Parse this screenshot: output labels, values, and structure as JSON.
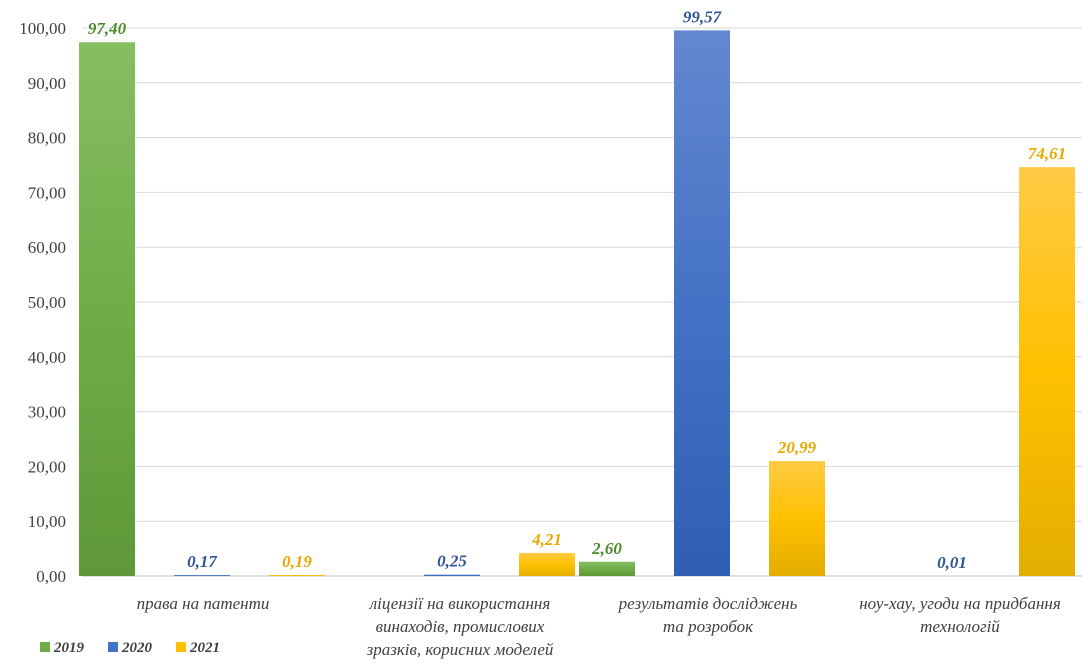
{
  "chart_data": {
    "type": "bar",
    "categories": [
      [
        "права на патенти"
      ],
      [
        "ліцензії на використання",
        "винаходів, промислових",
        "зразків, корисних моделей"
      ],
      [
        "результатів досліджень",
        "та розробок"
      ],
      [
        "ноу-хау, угоди на придбання",
        "технологій"
      ]
    ],
    "series": [
      {
        "name": "2019",
        "color": "#70AD47",
        "values": [
          97.4,
          null,
          2.6,
          null
        ],
        "labels": [
          "97,40",
          "",
          "2,60",
          ""
        ]
      },
      {
        "name": "2020",
        "color": "#4472C4",
        "values": [
          0.17,
          0.25,
          99.57,
          0.01
        ],
        "labels": [
          "0,17",
          "0,25",
          "99,57",
          "0,01"
        ]
      },
      {
        "name": "2021",
        "color": "#FFC000",
        "values": [
          0.19,
          4.21,
          20.99,
          74.61
        ],
        "labels": [
          "0,19",
          "4,21",
          "20,99",
          "74,61"
        ]
      }
    ],
    "label_colors": [
      "#4E8A2C",
      "#2F5597",
      "#E8A800"
    ],
    "ylim": [
      0,
      100
    ],
    "yticks": [
      "0,00",
      "10,00",
      "20,00",
      "30,00",
      "40,00",
      "50,00",
      "60,00",
      "70,00",
      "80,00",
      "90,00",
      "100,00"
    ],
    "grid": true,
    "legend_position": "bottom-left"
  }
}
